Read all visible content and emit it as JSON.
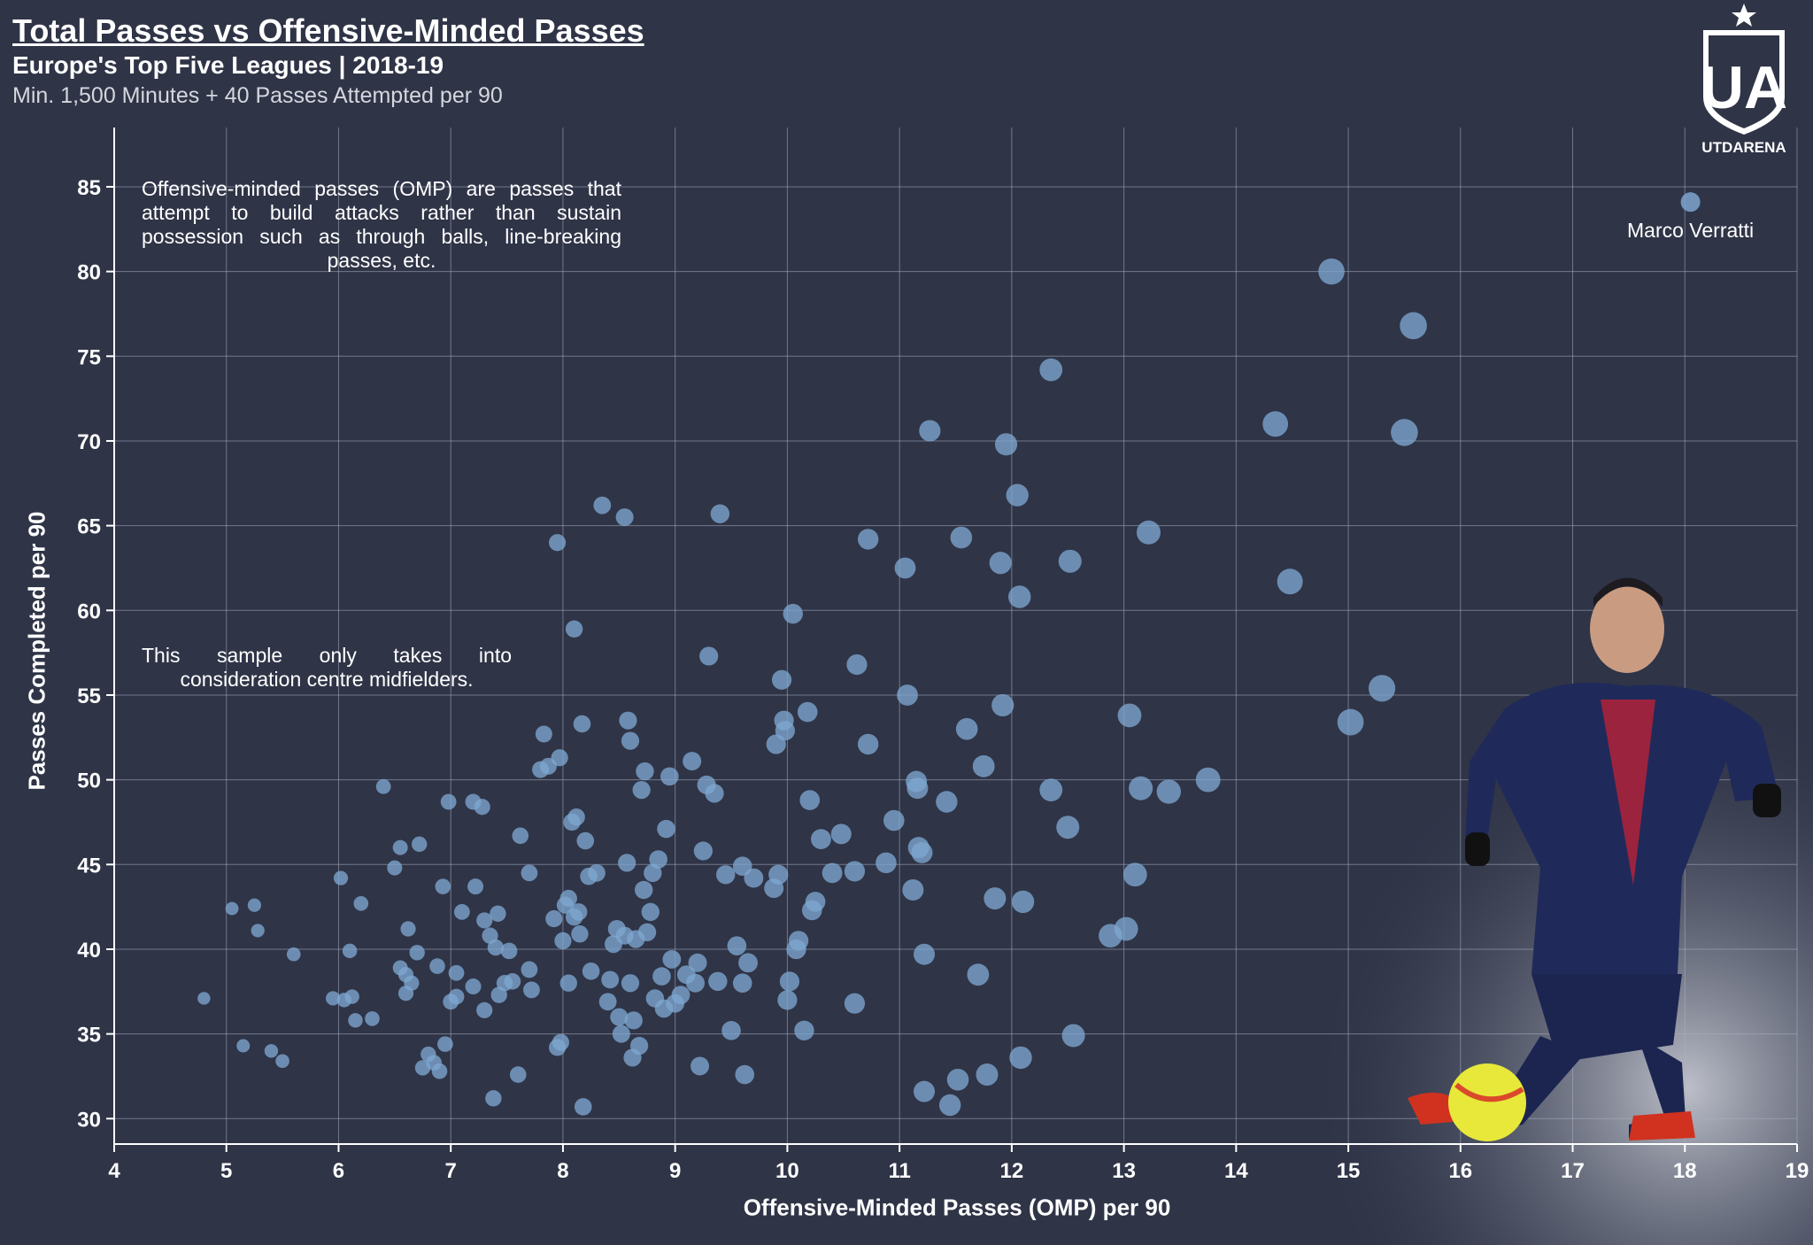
{
  "header": {
    "title": "Total Passes vs Offensive-Minded Passes",
    "subtitle": "Europe's Top Five Leagues | 2018-19",
    "note": "Min. 1,500 Minutes + 40 Passes Attempted per 90"
  },
  "logo": {
    "text": "UTDARENA",
    "monogram": "UA"
  },
  "annotations": {
    "omp_definition": "Offensive-minded passes (OMP) are passes that attempt to build attacks rather than sustain possession such as through balls, line-breaking passes, etc.",
    "sample_note": "This sample only takes into consideration centre midfielders."
  },
  "colors": {
    "background": "#2f3447",
    "point": "#7ea6d0",
    "grid": "#aab1c4",
    "highlight_glow": "#b8bcc7"
  },
  "player_image": {
    "icon": "player-photo-icon",
    "caption": "Marco Verratti"
  },
  "chart_data": {
    "type": "scatter",
    "xlabel": "Offensive-Minded Passes (OMP) per 90",
    "ylabel": "Passes Completed per 90",
    "xlim": [
      4,
      19
    ],
    "ylim": [
      28.5,
      88.5
    ],
    "xticks": [
      "4",
      "5",
      "6",
      "7",
      "8",
      "9",
      "10",
      "11",
      "12",
      "13",
      "14",
      "15",
      "16",
      "17",
      "18",
      "19"
    ],
    "yticks": [
      "30",
      "35",
      "40",
      "45",
      "50",
      "55",
      "60",
      "65",
      "70",
      "75",
      "80",
      "85"
    ],
    "grid": true,
    "highlight": {
      "label": "Marco Verratti",
      "x": 18.05,
      "y": 84.1
    },
    "points": [
      [
        4.8,
        37.1
      ],
      [
        5.05,
        42.4
      ],
      [
        5.15,
        34.3
      ],
      [
        5.25,
        42.6
      ],
      [
        5.28,
        41.1
      ],
      [
        5.4,
        34.0
      ],
      [
        5.5,
        33.4
      ],
      [
        5.6,
        39.7
      ],
      [
        5.95,
        37.1
      ],
      [
        6.02,
        44.2
      ],
      [
        6.05,
        37.0
      ],
      [
        6.1,
        39.9
      ],
      [
        6.12,
        37.2
      ],
      [
        6.15,
        35.8
      ],
      [
        6.2,
        42.7
      ],
      [
        6.3,
        35.9
      ],
      [
        6.4,
        49.6
      ],
      [
        6.5,
        44.8
      ],
      [
        6.55,
        46.0
      ],
      [
        6.55,
        38.9
      ],
      [
        6.6,
        38.5
      ],
      [
        6.6,
        37.4
      ],
      [
        6.62,
        41.2
      ],
      [
        6.65,
        38.0
      ],
      [
        6.7,
        39.8
      ],
      [
        6.72,
        46.2
      ],
      [
        6.75,
        33.0
      ],
      [
        6.8,
        33.8
      ],
      [
        6.85,
        33.3
      ],
      [
        6.88,
        39.0
      ],
      [
        6.9,
        32.8
      ],
      [
        6.93,
        43.7
      ],
      [
        6.95,
        34.4
      ],
      [
        6.98,
        48.7
      ],
      [
        7.0,
        36.9
      ],
      [
        7.05,
        37.2
      ],
      [
        7.05,
        38.6
      ],
      [
        7.1,
        42.2
      ],
      [
        7.2,
        48.7
      ],
      [
        7.2,
        37.8
      ],
      [
        7.22,
        43.7
      ],
      [
        7.28,
        48.4
      ],
      [
        7.3,
        36.4
      ],
      [
        7.3,
        41.7
      ],
      [
        7.35,
        40.8
      ],
      [
        7.38,
        31.2
      ],
      [
        7.4,
        40.1
      ],
      [
        7.42,
        42.1
      ],
      [
        7.43,
        37.3
      ],
      [
        7.48,
        38.0
      ],
      [
        7.52,
        39.9
      ],
      [
        7.55,
        38.1
      ],
      [
        7.6,
        32.6
      ],
      [
        7.62,
        46.7
      ],
      [
        7.7,
        44.5
      ],
      [
        7.7,
        38.8
      ],
      [
        7.72,
        37.6
      ],
      [
        7.8,
        50.6
      ],
      [
        7.83,
        52.7
      ],
      [
        7.87,
        50.8
      ],
      [
        7.92,
        41.8
      ],
      [
        7.95,
        34.2
      ],
      [
        7.95,
        64.0
      ],
      [
        7.97,
        51.3
      ],
      [
        7.98,
        34.5
      ],
      [
        8.0,
        40.5
      ],
      [
        8.02,
        42.6
      ],
      [
        8.05,
        38.0
      ],
      [
        8.05,
        43.0
      ],
      [
        8.08,
        47.5
      ],
      [
        8.1,
        58.9
      ],
      [
        8.1,
        41.9
      ],
      [
        8.12,
        47.8
      ],
      [
        8.14,
        42.2
      ],
      [
        8.15,
        40.9
      ],
      [
        8.17,
        53.3
      ],
      [
        8.18,
        30.7
      ],
      [
        8.2,
        46.4
      ],
      [
        8.23,
        44.3
      ],
      [
        8.25,
        38.7
      ],
      [
        8.3,
        44.5
      ],
      [
        8.35,
        66.2
      ],
      [
        8.4,
        36.9
      ],
      [
        8.42,
        38.2
      ],
      [
        8.45,
        40.3
      ],
      [
        8.48,
        41.2
      ],
      [
        8.5,
        36.0
      ],
      [
        8.52,
        35.0
      ],
      [
        8.55,
        65.5
      ],
      [
        8.55,
        40.8
      ],
      [
        8.57,
        45.1
      ],
      [
        8.58,
        53.5
      ],
      [
        8.6,
        52.3
      ],
      [
        8.6,
        38.0
      ],
      [
        8.62,
        33.6
      ],
      [
        8.63,
        35.8
      ],
      [
        8.65,
        40.6
      ],
      [
        8.68,
        34.3
      ],
      [
        8.7,
        49.4
      ],
      [
        8.72,
        43.5
      ],
      [
        8.73,
        50.5
      ],
      [
        8.75,
        41.0
      ],
      [
        8.78,
        42.2
      ],
      [
        8.8,
        44.5
      ],
      [
        8.82,
        37.1
      ],
      [
        8.85,
        45.3
      ],
      [
        8.88,
        38.4
      ],
      [
        8.9,
        36.5
      ],
      [
        8.92,
        47.1
      ],
      [
        8.95,
        50.2
      ],
      [
        8.97,
        39.4
      ],
      [
        9.0,
        36.8
      ],
      [
        9.05,
        37.3
      ],
      [
        9.1,
        38.5
      ],
      [
        9.15,
        51.1
      ],
      [
        9.18,
        38.0
      ],
      [
        9.2,
        39.2
      ],
      [
        9.22,
        33.1
      ],
      [
        9.25,
        45.8
      ],
      [
        9.28,
        49.7
      ],
      [
        9.3,
        57.3
      ],
      [
        9.35,
        49.2
      ],
      [
        9.38,
        38.1
      ],
      [
        9.4,
        65.7
      ],
      [
        9.45,
        44.4
      ],
      [
        9.5,
        35.2
      ],
      [
        9.55,
        40.2
      ],
      [
        9.6,
        44.9
      ],
      [
        9.6,
        38.0
      ],
      [
        9.62,
        32.6
      ],
      [
        9.65,
        39.2
      ],
      [
        9.7,
        44.2
      ],
      [
        9.88,
        43.6
      ],
      [
        9.9,
        52.1
      ],
      [
        9.92,
        44.4
      ],
      [
        9.95,
        55.9
      ],
      [
        9.97,
        53.5
      ],
      [
        9.98,
        52.9
      ],
      [
        10.0,
        37.0
      ],
      [
        10.02,
        38.1
      ],
      [
        10.05,
        59.8
      ],
      [
        10.08,
        40.0
      ],
      [
        10.1,
        40.5
      ],
      [
        10.15,
        35.2
      ],
      [
        10.18,
        54.0
      ],
      [
        10.2,
        48.8
      ],
      [
        10.22,
        42.3
      ],
      [
        10.25,
        42.8
      ],
      [
        10.3,
        46.5
      ],
      [
        10.4,
        44.5
      ],
      [
        10.48,
        46.8
      ],
      [
        10.6,
        44.6
      ],
      [
        10.6,
        36.8
      ],
      [
        10.62,
        56.8
      ],
      [
        10.72,
        64.2
      ],
      [
        10.72,
        52.1
      ],
      [
        10.88,
        45.1
      ],
      [
        10.95,
        47.6
      ],
      [
        11.05,
        62.5
      ],
      [
        11.07,
        55.0
      ],
      [
        11.12,
        43.5
      ],
      [
        11.15,
        49.9
      ],
      [
        11.16,
        49.5
      ],
      [
        11.17,
        46.0
      ],
      [
        11.2,
        45.7
      ],
      [
        11.22,
        31.6
      ],
      [
        11.22,
        39.7
      ],
      [
        11.27,
        70.6
      ],
      [
        11.42,
        48.7
      ],
      [
        11.45,
        30.8
      ],
      [
        11.52,
        32.3
      ],
      [
        11.55,
        64.3
      ],
      [
        11.6,
        53.0
      ],
      [
        11.7,
        38.5
      ],
      [
        11.75,
        50.8
      ],
      [
        11.78,
        32.6
      ],
      [
        11.85,
        43.0
      ],
      [
        11.9,
        62.8
      ],
      [
        11.92,
        54.4
      ],
      [
        11.95,
        69.8
      ],
      [
        12.05,
        66.8
      ],
      [
        12.07,
        60.8
      ],
      [
        12.08,
        33.6
      ],
      [
        12.1,
        42.8
      ],
      [
        12.35,
        74.2
      ],
      [
        12.35,
        49.4
      ],
      [
        12.5,
        47.2
      ],
      [
        12.52,
        62.9
      ],
      [
        12.55,
        34.9
      ],
      [
        12.88,
        40.8
      ],
      [
        13.02,
        41.2
      ],
      [
        13.05,
        53.8
      ],
      [
        13.1,
        44.4
      ],
      [
        13.15,
        49.5
      ],
      [
        13.22,
        64.6
      ],
      [
        13.4,
        49.3
      ],
      [
        13.75,
        50.0
      ],
      [
        14.35,
        71.0
      ],
      [
        14.48,
        61.7
      ],
      [
        14.85,
        80.0
      ],
      [
        15.02,
        53.4
      ],
      [
        15.3,
        55.4
      ],
      [
        15.5,
        70.5
      ],
      [
        15.58,
        76.8
      ]
    ]
  }
}
